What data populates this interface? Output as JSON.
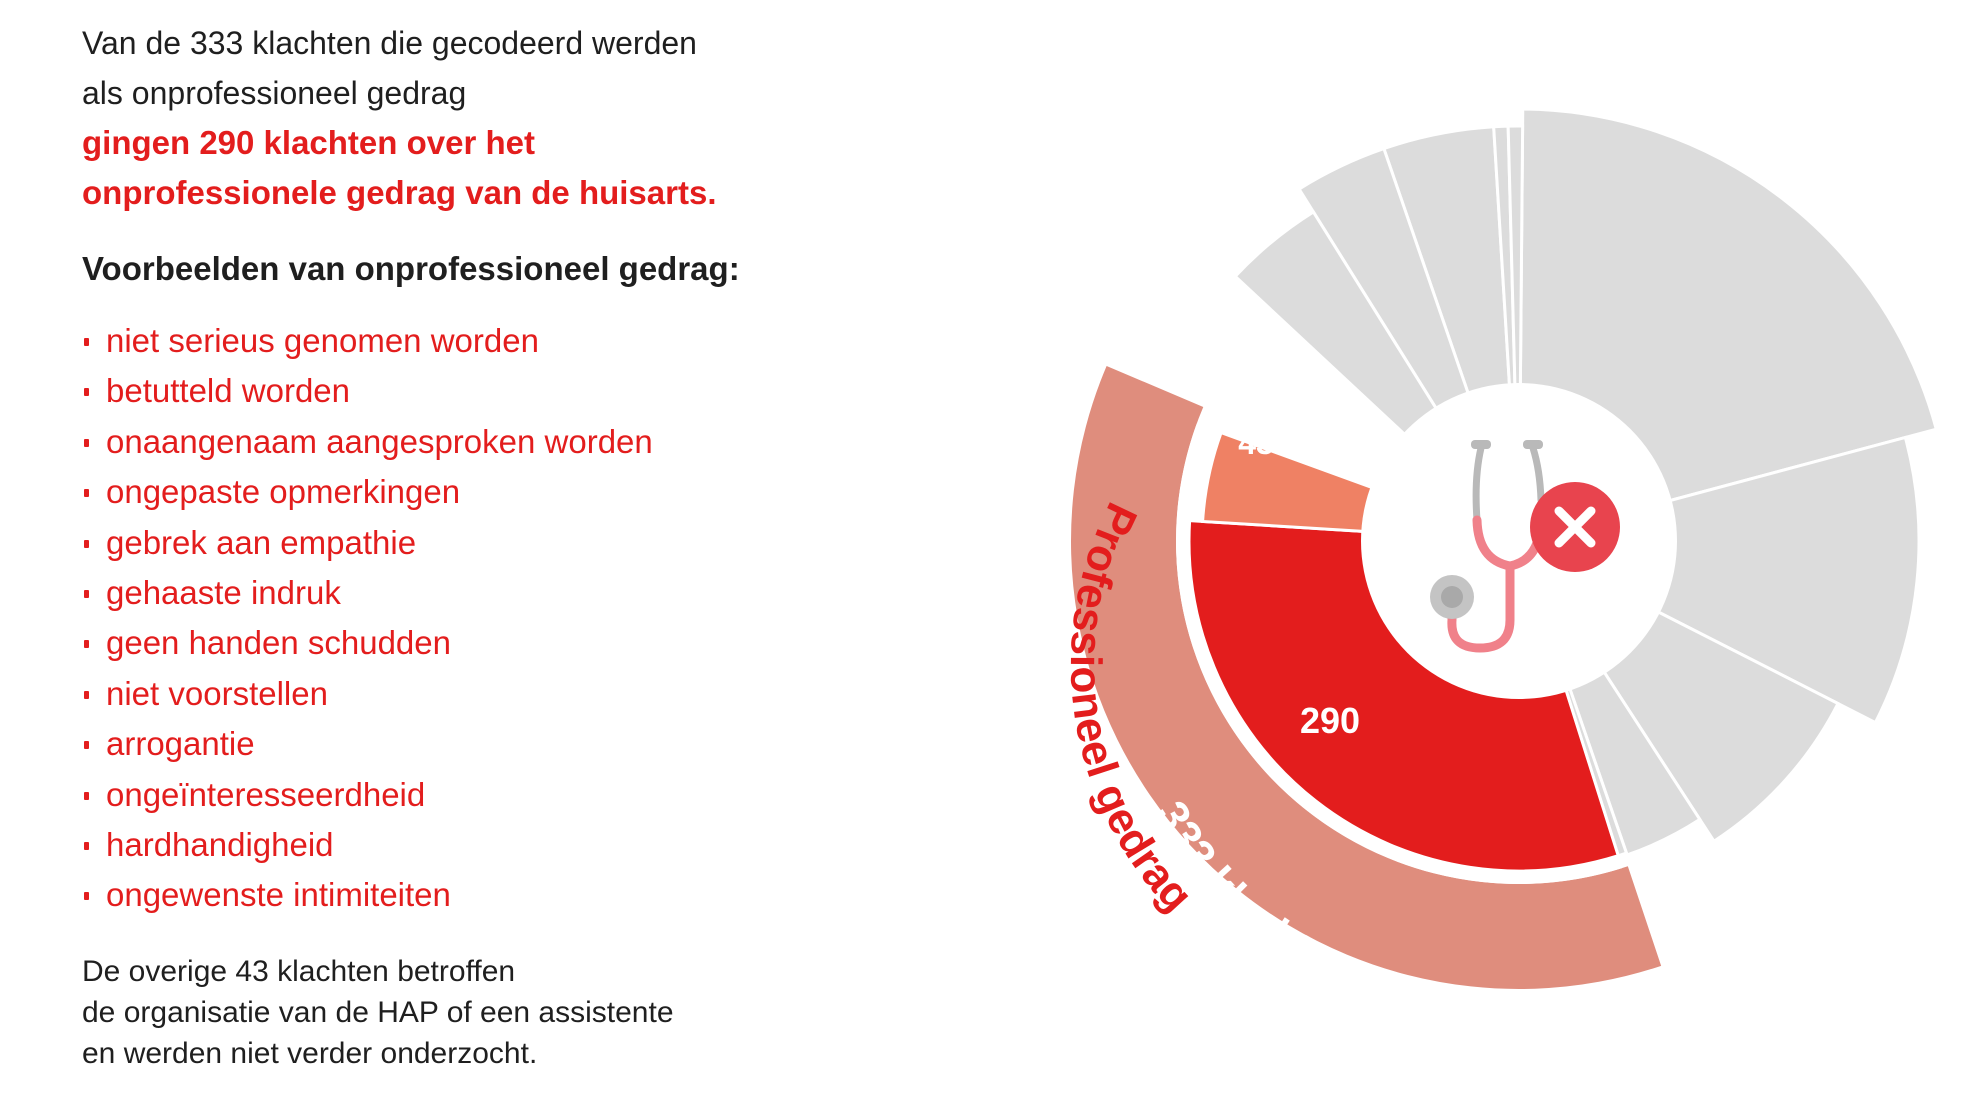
{
  "text": {
    "intro_lines": [
      "Van de 333 klachten die gecodeerd werden",
      "als onprofessioneel gedrag"
    ],
    "highlight_lines": [
      "gingen 290 klachten over het",
      "onprofessionele gedrag van de huisarts."
    ],
    "examples_heading": "Voorbeelden van onprofessioneel gedrag:",
    "examples": [
      "niet serieus genomen worden",
      "betutteld worden",
      "onaangenaam aangesproken worden",
      "ongepaste opmerkingen",
      "gebrek aan empathie",
      "gehaaste indruk",
      "geen handen schudden",
      "niet voorstellen",
      "arrogantie",
      "ongeïnteresseerdheid",
      "hardhandigheid",
      "ongewenste intimiteiten"
    ],
    "outro_lines": [
      "De overige 43 klachten betroffen",
      "de organisatie van de HAP of een assistente",
      "en werden niet verder onderzocht."
    ]
  },
  "chart_data": {
    "type": "pie",
    "subtype": "sunburst",
    "highlighted_group": {
      "label": "Professioneel gedrag",
      "total_label": "333 klachten",
      "total": 333,
      "color": "#df8d7d",
      "segments": [
        {
          "label": "290",
          "value": 290,
          "color": "#e31d1d"
        },
        {
          "label": "43",
          "value": 43,
          "color": "#ef8164"
        }
      ]
    },
    "other_segments": {
      "color": "#dcdcdc",
      "label": "",
      "count": 10
    },
    "center_icon": "stethoscope-with-x-icon",
    "colors": {
      "accent_red": "#e31d1d",
      "icon_pink": "#f0818a",
      "icon_grey": "#b9b9b9",
      "icon_badge": "#e8444e"
    }
  }
}
